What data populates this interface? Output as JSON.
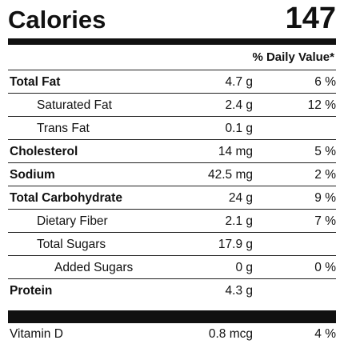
{
  "calories": {
    "label": "Calories",
    "value": "147"
  },
  "daily_value_header": "% Daily Value*",
  "nutrients": [
    {
      "name": "Total Fat",
      "amount": "4.7 g",
      "dv": "6 %",
      "bold": true,
      "indent": 0
    },
    {
      "name": "Saturated Fat",
      "amount": "2.4 g",
      "dv": "12 %",
      "bold": false,
      "indent": 1
    },
    {
      "name": "Trans Fat",
      "amount": "0.1 g",
      "dv": "",
      "bold": false,
      "indent": 1
    },
    {
      "name": "Cholesterol",
      "amount": "14 mg",
      "dv": "5 %",
      "bold": true,
      "indent": 0
    },
    {
      "name": "Sodium",
      "amount": "42.5 mg",
      "dv": "2 %",
      "bold": true,
      "indent": 0
    },
    {
      "name": "Total Carbohydrate",
      "amount": "24 g",
      "dv": "9 %",
      "bold": true,
      "indent": 0
    },
    {
      "name": "Dietary Fiber",
      "amount": "2.1 g",
      "dv": "7 %",
      "bold": false,
      "indent": 1
    },
    {
      "name": "Total Sugars",
      "amount": "17.9 g",
      "dv": "",
      "bold": false,
      "indent": 1
    },
    {
      "name": "Added Sugars",
      "amount": "0 g",
      "dv": "0 %",
      "bold": false,
      "indent": 2
    },
    {
      "name": "Protein",
      "amount": "4.3 g",
      "dv": "",
      "bold": true,
      "indent": 0
    }
  ],
  "vitamins": [
    {
      "name": "Vitamin D",
      "amount": "0.8 mcg",
      "dv": "4 %"
    }
  ]
}
